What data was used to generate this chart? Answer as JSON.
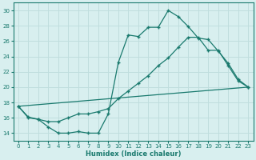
{
  "xlabel": "Humidex (Indice chaleur)",
  "bg_color": "#d8efef",
  "grid_color": "#c0dede",
  "line_color": "#1a7a6e",
  "xlim": [
    -0.5,
    23.5
  ],
  "ylim": [
    13.0,
    31.0
  ],
  "xticks": [
    0,
    1,
    2,
    3,
    4,
    5,
    6,
    7,
    8,
    9,
    10,
    11,
    12,
    13,
    14,
    15,
    16,
    17,
    18,
    19,
    20,
    21,
    22,
    23
  ],
  "yticks": [
    14,
    16,
    18,
    20,
    22,
    24,
    26,
    28,
    30
  ],
  "line1_x": [
    0,
    1,
    2,
    3,
    4,
    5,
    6,
    7,
    8,
    9,
    10,
    11,
    12,
    13,
    14,
    15,
    16,
    17,
    18,
    19,
    20,
    21,
    22,
    23
  ],
  "line1_y": [
    17.5,
    16.1,
    15.8,
    14.8,
    14.0,
    14.0,
    14.2,
    14.0,
    14.0,
    16.5,
    23.2,
    26.8,
    26.6,
    27.8,
    27.8,
    30.0,
    29.2,
    27.9,
    26.4,
    26.2,
    24.7,
    23.1,
    21.0,
    20.0
  ],
  "line2_x": [
    0,
    1,
    2,
    3,
    4,
    5,
    6,
    7,
    8,
    9,
    10,
    11,
    12,
    13,
    14,
    15,
    16,
    17,
    18,
    19,
    20,
    21,
    22,
    23
  ],
  "line2_y": [
    17.5,
    16.0,
    15.8,
    15.5,
    15.5,
    16.0,
    16.5,
    16.5,
    16.8,
    17.2,
    18.5,
    19.5,
    20.5,
    21.5,
    22.8,
    23.8,
    25.2,
    26.5,
    26.5,
    24.8,
    24.8,
    22.8,
    20.8,
    20.0
  ],
  "line3_x": [
    0,
    23
  ],
  "line3_y": [
    17.5,
    20.0
  ]
}
